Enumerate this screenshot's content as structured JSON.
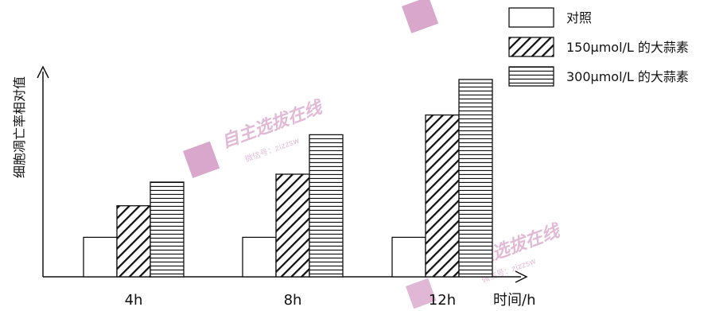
{
  "chart_data": {
    "type": "bar",
    "categories": [
      "4h",
      "8h",
      "12h"
    ],
    "series": [
      {
        "name": "对照",
        "pattern": "none",
        "values": [
          1,
          1,
          1
        ]
      },
      {
        "name": "150μmol/L 的大蒜素",
        "pattern": "diagonal",
        "values": [
          1.8,
          2.6,
          4.1
        ]
      },
      {
        "name": "300μmol/L 的大蒜素",
        "pattern": "horizontal",
        "values": [
          2.4,
          3.6,
          5.0
        ]
      }
    ],
    "ylim": [
      0,
      5.2
    ],
    "title": "",
    "xlabel": "时间/h",
    "ylabel": "细胞凋亡率相对值",
    "legend_position": "top-right",
    "grid": false
  },
  "watermark": {
    "brand": "自主选拔在线",
    "wechat": "微信号：zizzsw"
  },
  "colors": {
    "bar_fill": "#ffffff",
    "bar_stroke": "#111111",
    "axis": "#111111",
    "watermark": "#cc88bb"
  }
}
